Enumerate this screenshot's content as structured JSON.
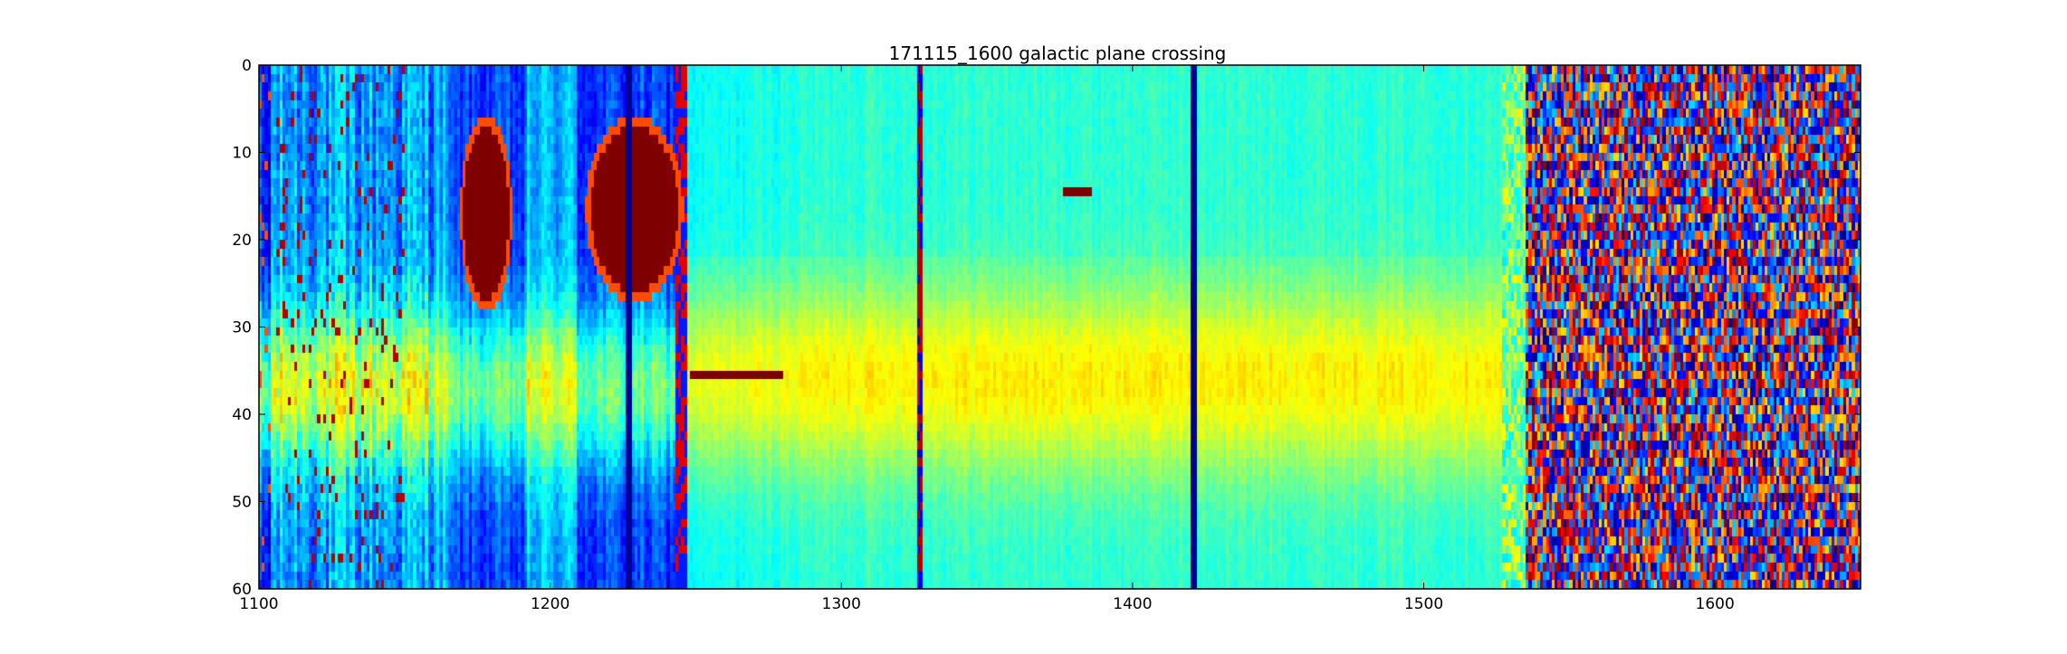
{
  "chart_data": {
    "type": "heatmap",
    "title": "171115_1600 galactic plane crossing",
    "xlabel": "",
    "ylabel": "",
    "xlim": [
      1100,
      1650
    ],
    "ylim": [
      60,
      0
    ],
    "x_ticks": [
      1100,
      1200,
      1300,
      1400,
      1500,
      1600
    ],
    "y_ticks": [
      0,
      10,
      20,
      30,
      40,
      50,
      60
    ],
    "colormap": "jet",
    "colormap_stops": [
      "#00007f",
      "#0000ff",
      "#007fff",
      "#00ffff",
      "#7fff7f",
      "#ffff00",
      "#ff7f00",
      "#ff0000",
      "#7f0000"
    ],
    "grid": false,
    "features": [
      {
        "kind": "saturated_blob",
        "x": [
          1170,
          1186
        ],
        "y": [
          7,
          27
        ],
        "level": 1.0
      },
      {
        "kind": "saturated_blob",
        "x": [
          1214,
          1244
        ],
        "y": [
          7,
          26
        ],
        "level": 1.0
      },
      {
        "kind": "dark_vertical_line",
        "x": 1421,
        "y": [
          0,
          60
        ]
      },
      {
        "kind": "dark_vertical_line",
        "x": 1227,
        "y": [
          0,
          60
        ]
      },
      {
        "kind": "noisy_band",
        "x": [
          1527,
          1650
        ],
        "y": [
          0,
          60
        ]
      },
      {
        "kind": "horizontal_line",
        "x": [
          1248,
          1280
        ],
        "y": 35.8,
        "level": 1.0
      },
      {
        "kind": "short_streak",
        "x": [
          1376,
          1386
        ],
        "y": 14.2,
        "level": 1.0
      }
    ]
  }
}
